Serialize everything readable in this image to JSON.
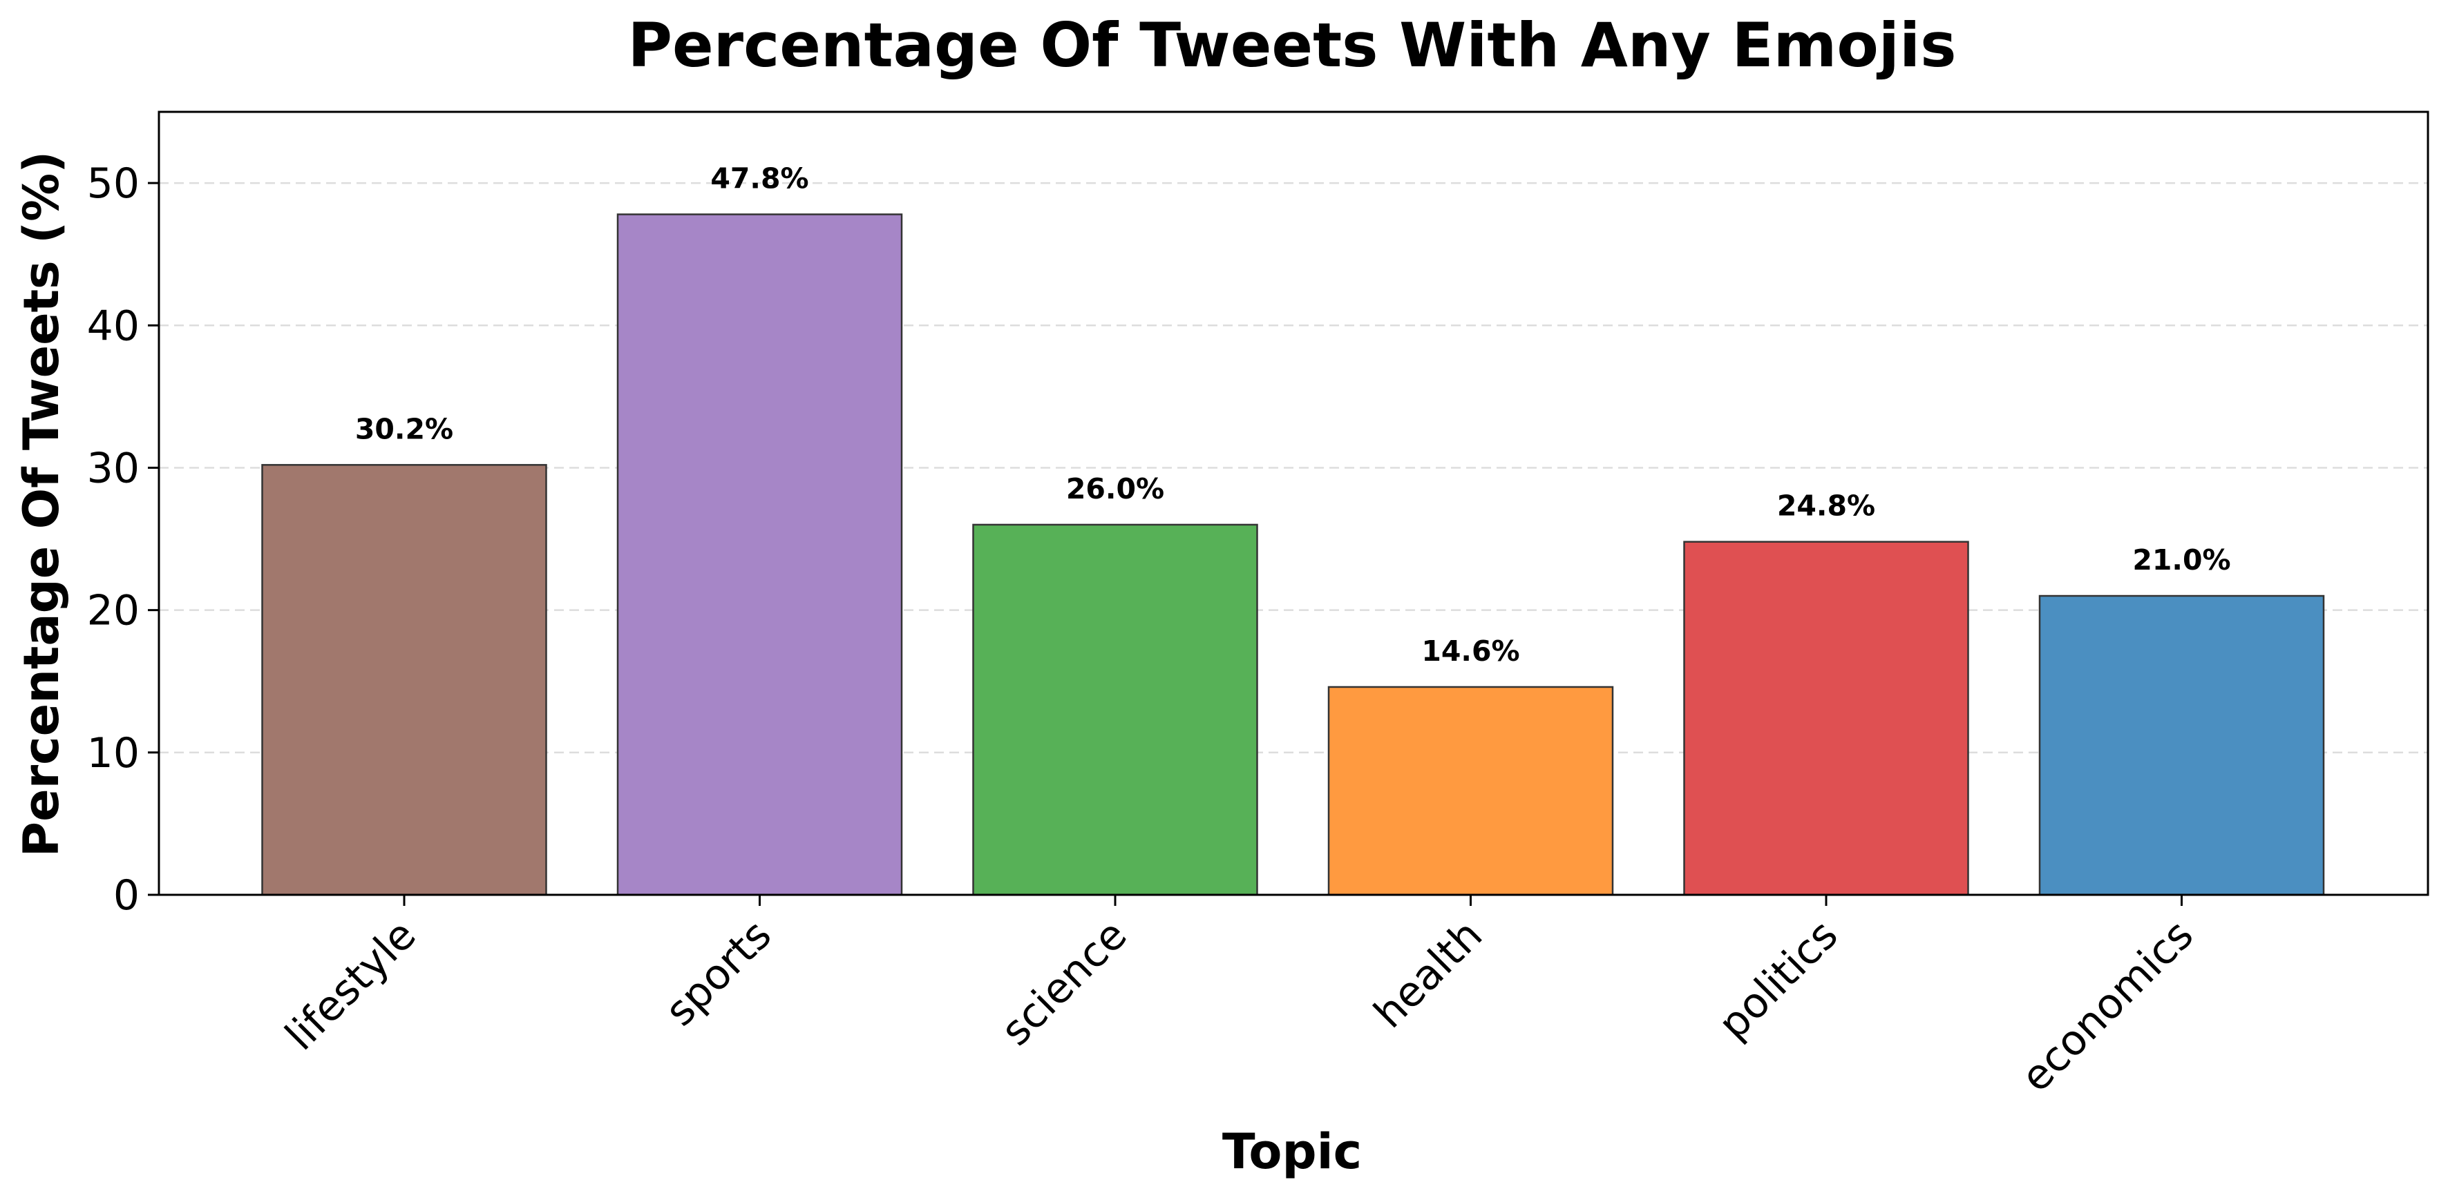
{
  "chart_data": {
    "type": "bar",
    "title": "Percentage Of Tweets With Any Emojis",
    "xlabel": "Topic",
    "ylabel": "Percentage Of Tweets (%)",
    "categories": [
      "lifestyle",
      "sports",
      "science",
      "health",
      "politics",
      "economics"
    ],
    "values": [
      30.2,
      47.8,
      26.0,
      14.6,
      24.8,
      21.0
    ],
    "value_labels": [
      "30.2%",
      "47.8%",
      "26.0%",
      "14.6%",
      "24.8%",
      "21.0%"
    ],
    "colors": [
      "#a1786d",
      "#a686c7",
      "#57b157",
      "#ff9a40",
      "#df5052",
      "#4b8fc1"
    ],
    "ylim": [
      0,
      55
    ],
    "yticks": [
      0,
      10,
      20,
      30,
      40,
      50
    ],
    "ytick_labels": [
      "0",
      "10",
      "20",
      "30",
      "40",
      "50"
    ],
    "grid": "y-dashed",
    "legend": "none"
  }
}
